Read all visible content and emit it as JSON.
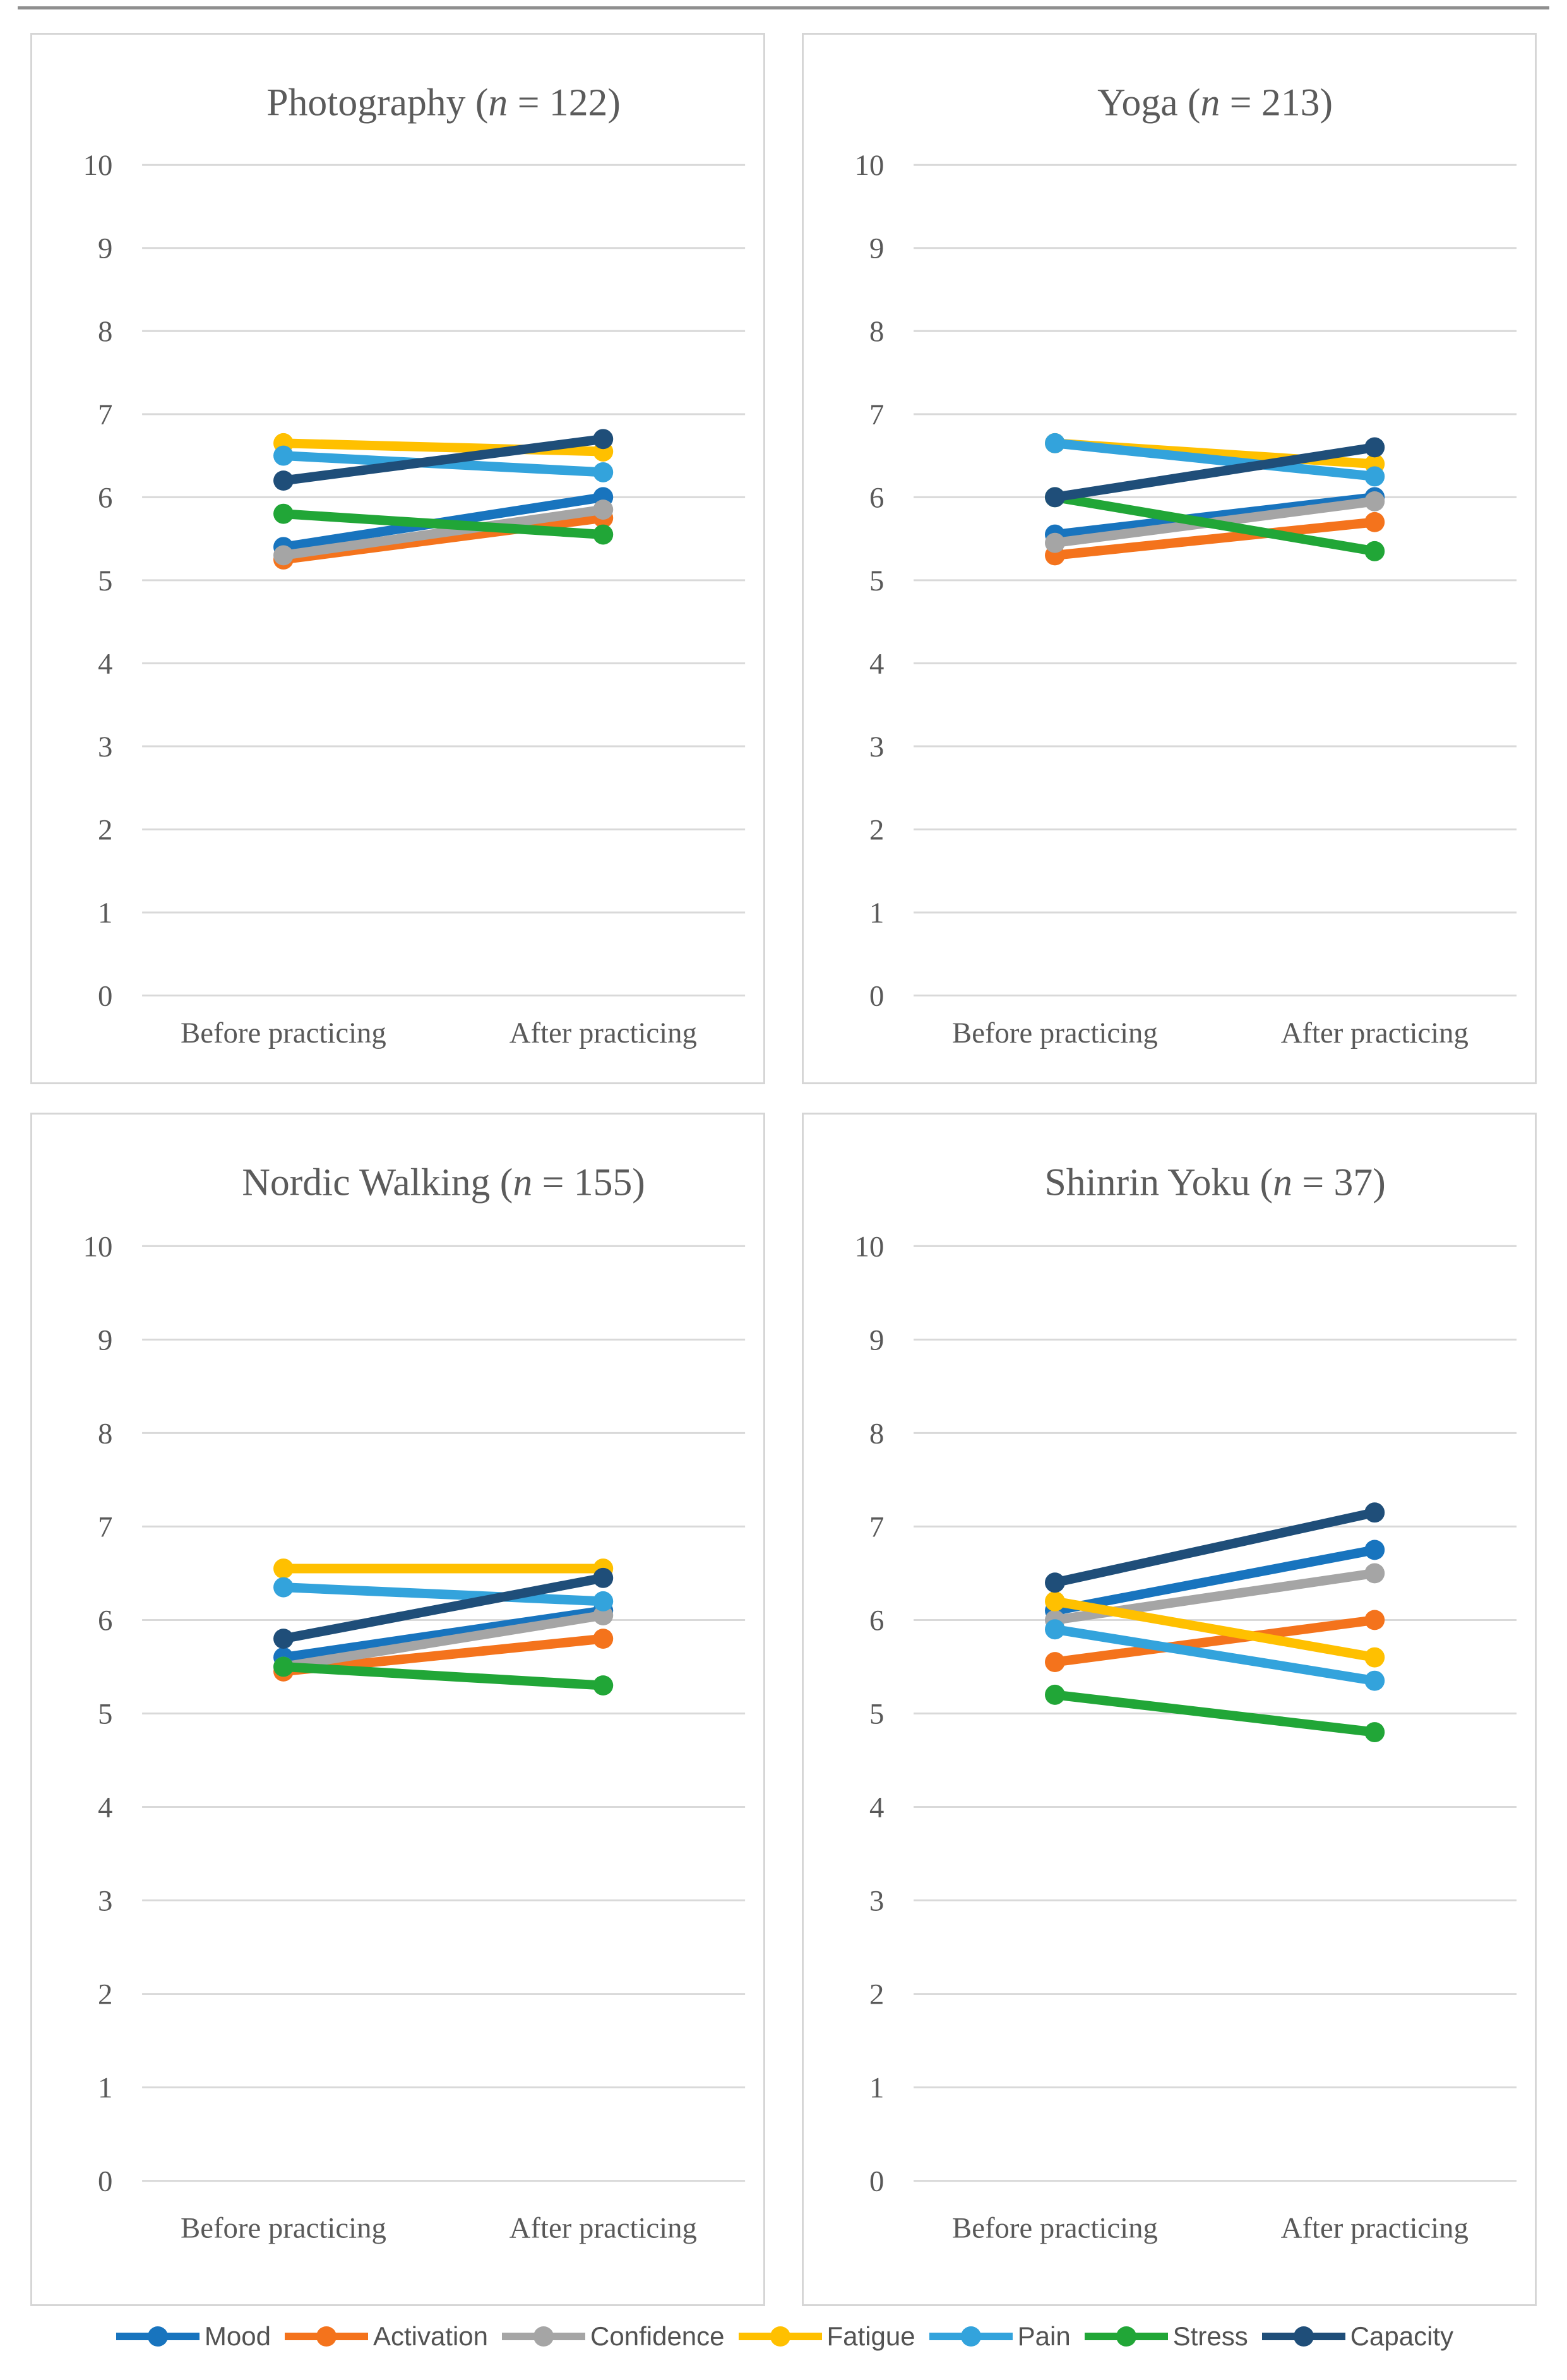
{
  "figure": {
    "background": "#ffffff",
    "gridline_color": "#d9d9d9",
    "text_color": "#595959"
  },
  "categories": [
    "Before practicing",
    "After practicing"
  ],
  "chart_data": [
    {
      "type": "line",
      "title": "Photography",
      "n": 122,
      "categories": [
        "Before practicing",
        "After practicing"
      ],
      "ylim": [
        0,
        10
      ],
      "yticks": [
        10,
        9,
        8,
        7,
        6,
        5,
        4,
        3,
        2,
        1,
        0
      ],
      "grid": true,
      "series": [
        {
          "name": "Mood",
          "color": "#1874be",
          "values": [
            5.4,
            6.0
          ]
        },
        {
          "name": "Activation",
          "color": "#f4731c",
          "values": [
            5.25,
            5.75
          ]
        },
        {
          "name": "Confidence",
          "color": "#a5a5a5",
          "values": [
            5.3,
            5.85
          ]
        },
        {
          "name": "Fatigue",
          "color": "#ffc000",
          "values": [
            6.65,
            6.55
          ]
        },
        {
          "name": "Pain",
          "color": "#33a3dc",
          "values": [
            6.5,
            6.3
          ]
        },
        {
          "name": "Stress",
          "color": "#21a637",
          "values": [
            5.8,
            5.55
          ]
        },
        {
          "name": "Capacity",
          "color": "#1f4e79",
          "values": [
            6.2,
            6.7
          ]
        }
      ]
    },
    {
      "type": "line",
      "title": "Yoga",
      "n": 213,
      "categories": [
        "Before practicing",
        "After practicing"
      ],
      "ylim": [
        0,
        10
      ],
      "yticks": [
        10,
        9,
        8,
        7,
        6,
        5,
        4,
        3,
        2,
        1,
        0
      ],
      "grid": true,
      "series": [
        {
          "name": "Mood",
          "color": "#1874be",
          "values": [
            5.55,
            6.0
          ]
        },
        {
          "name": "Activation",
          "color": "#f4731c",
          "values": [
            5.3,
            5.7
          ]
        },
        {
          "name": "Confidence",
          "color": "#a5a5a5",
          "values": [
            5.45,
            5.95
          ]
        },
        {
          "name": "Fatigue",
          "color": "#ffc000",
          "values": [
            6.65,
            6.4
          ]
        },
        {
          "name": "Pain",
          "color": "#33a3dc",
          "values": [
            6.65,
            6.25
          ]
        },
        {
          "name": "Stress",
          "color": "#21a637",
          "values": [
            6.0,
            5.35
          ]
        },
        {
          "name": "Capacity",
          "color": "#1f4e79",
          "values": [
            6.0,
            6.6
          ]
        }
      ]
    },
    {
      "type": "line",
      "title": "Nordic Walking",
      "n": 155,
      "categories": [
        "Before practicing",
        "After practicing"
      ],
      "ylim": [
        0,
        10
      ],
      "yticks": [
        10,
        9,
        8,
        7,
        6,
        5,
        4,
        3,
        2,
        1,
        0
      ],
      "grid": true,
      "series": [
        {
          "name": "Mood",
          "color": "#1874be",
          "values": [
            5.6,
            6.1
          ]
        },
        {
          "name": "Activation",
          "color": "#f4731c",
          "values": [
            5.45,
            5.8
          ]
        },
        {
          "name": "Confidence",
          "color": "#a5a5a5",
          "values": [
            5.5,
            6.05
          ]
        },
        {
          "name": "Fatigue",
          "color": "#ffc000",
          "values": [
            6.55,
            6.55
          ]
        },
        {
          "name": "Pain",
          "color": "#33a3dc",
          "values": [
            6.35,
            6.2
          ]
        },
        {
          "name": "Stress",
          "color": "#21a637",
          "values": [
            5.5,
            5.3
          ]
        },
        {
          "name": "Capacity",
          "color": "#1f4e79",
          "values": [
            5.8,
            6.45
          ]
        }
      ]
    },
    {
      "type": "line",
      "title": "Shinrin Yoku",
      "n": 37,
      "categories": [
        "Before practicing",
        "After practicing"
      ],
      "ylim": [
        0,
        10
      ],
      "yticks": [
        10,
        9,
        8,
        7,
        6,
        5,
        4,
        3,
        2,
        1,
        0
      ],
      "grid": true,
      "series": [
        {
          "name": "Mood",
          "color": "#1874be",
          "values": [
            6.1,
            6.75
          ]
        },
        {
          "name": "Activation",
          "color": "#f4731c",
          "values": [
            5.55,
            6.0
          ]
        },
        {
          "name": "Confidence",
          "color": "#a5a5a5",
          "values": [
            6.0,
            6.5
          ]
        },
        {
          "name": "Fatigue",
          "color": "#ffc000",
          "values": [
            6.2,
            5.6
          ]
        },
        {
          "name": "Pain",
          "color": "#33a3dc",
          "values": [
            5.9,
            5.35
          ]
        },
        {
          "name": "Stress",
          "color": "#21a637",
          "values": [
            5.2,
            4.8
          ]
        },
        {
          "name": "Capacity",
          "color": "#1f4e79",
          "values": [
            6.4,
            7.15
          ]
        }
      ]
    }
  ],
  "legend": {
    "position": "bottom",
    "items": [
      {
        "label": "Mood",
        "color": "#1874be"
      },
      {
        "label": "Activation",
        "color": "#f4731c"
      },
      {
        "label": "Confidence",
        "color": "#a5a5a5"
      },
      {
        "label": "Fatigue",
        "color": "#ffc000"
      },
      {
        "label": "Pain",
        "color": "#33a3dc"
      },
      {
        "label": "Stress",
        "color": "#21a637"
      },
      {
        "label": "Capacity",
        "color": "#1f4e79"
      }
    ]
  }
}
